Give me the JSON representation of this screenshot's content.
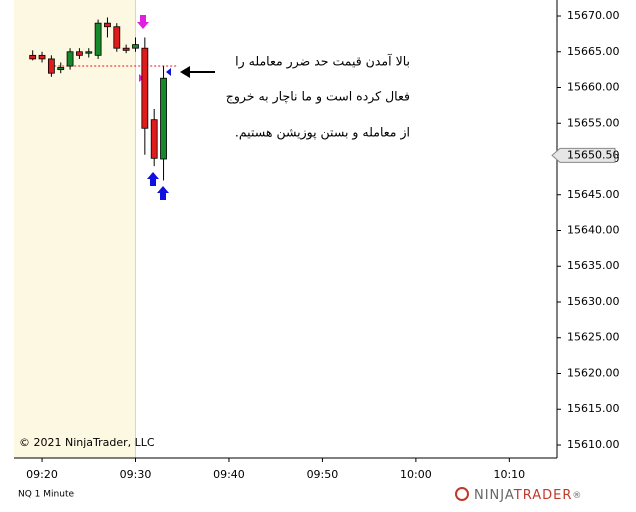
{
  "chart_data": {
    "type": "candlestick",
    "x": [
      559,
      560,
      561,
      562,
      563,
      564,
      565,
      566,
      567,
      568,
      569,
      570,
      571,
      572,
      573
    ],
    "series": [
      {
        "name": "open",
        "values": [
          15664.5,
          15664.5,
          15664.0,
          15662.5,
          15663.0,
          15665.0,
          15664.8,
          15664.5,
          15669.0,
          15668.5,
          15665.5,
          15665.5,
          15665.5,
          15655.5,
          15650.0
        ]
      },
      {
        "name": "high",
        "values": [
          15665.2,
          15665.0,
          15664.5,
          15663.5,
          15665.5,
          15665.5,
          15665.5,
          15669.5,
          15669.8,
          15669.0,
          15666.0,
          15667.0,
          15667.0,
          15657.0,
          15663.0
        ]
      },
      {
        "name": "low",
        "values": [
          15663.8,
          15663.5,
          15661.5,
          15662.0,
          15662.5,
          15664.0,
          15664.2,
          15664.0,
          15667.0,
          15665.0,
          15664.8,
          15665.0,
          15650.6,
          15649.0,
          15647.0
        ]
      },
      {
        "name": "close",
        "values": [
          15664.0,
          15664.0,
          15662.0,
          15662.8,
          15665.0,
          15664.5,
          15665.0,
          15669.0,
          15668.5,
          15665.5,
          15665.2,
          15666.0,
          15654.3,
          15650.1,
          15661.3
        ]
      }
    ],
    "up_color": "#168a2a",
    "down_color": "#e01b1b",
    "xlim": [
      557,
      615.1
    ],
    "xticks": [
      {
        "value": 560,
        "label": "09:20"
      },
      {
        "value": 570,
        "label": "09:30"
      },
      {
        "value": 580,
        "label": "09:40"
      },
      {
        "value": 590,
        "label": "09:50"
      },
      {
        "value": 600,
        "label": "10:00"
      },
      {
        "value": 610,
        "label": "10:10"
      }
    ],
    "ylim": [
      15608.18,
      15672.24
    ],
    "yticks": [
      {
        "value": 15610,
        "label": "15610.00"
      },
      {
        "value": 15615,
        "label": "15615.00"
      },
      {
        "value": 15620,
        "label": "15620.00"
      },
      {
        "value": 15625,
        "label": "15625.00"
      },
      {
        "value": 15630,
        "label": "15630.00"
      },
      {
        "value": 15635,
        "label": "15635.00"
      },
      {
        "value": 15640,
        "label": "15640.00"
      },
      {
        "value": 15645,
        "label": "15645.00"
      },
      {
        "value": 15650,
        "label": "15650.00"
      },
      {
        "value": 15655,
        "label": "15655.00"
      },
      {
        "value": 15660,
        "label": "15660.00"
      },
      {
        "value": 15665,
        "label": "15665.00"
      },
      {
        "value": 15670,
        "label": "15670.00"
      }
    ],
    "session_start": 570,
    "last_price": {
      "value": 15650.5,
      "label": "15650.50"
    },
    "stop_line": {
      "value": 15663,
      "from": 561.3,
      "to": 574.5
    },
    "annotations": [
      "بالا آمدن قیمت حد ضرر معامله را",
      "فعال کرده است و ما ناچار به خروج",
      "از معامله و بستن پوزیشن هستیم."
    ],
    "copyright": "© 2021 NinjaTrader, LLC",
    "instrument": "NQ 1 Minute",
    "logo": {
      "first": "NINJA",
      "second": "TRADER",
      "mark": "®"
    }
  }
}
